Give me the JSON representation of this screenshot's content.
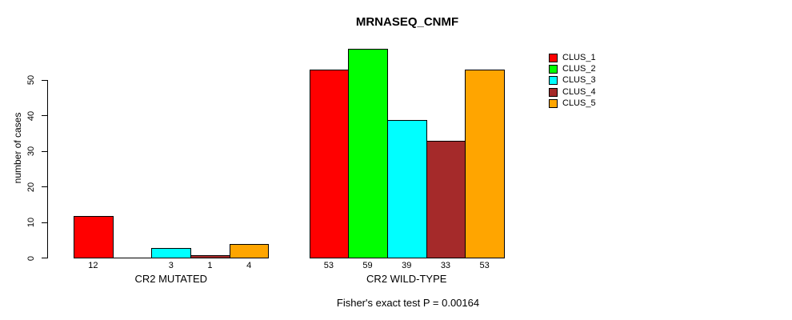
{
  "title": "MRNASEQ_CNMF",
  "ylabel": "number of cases",
  "footer": "Fisher's exact test P = 0.00164",
  "chart_data": {
    "type": "bar",
    "title": "MRNASEQ_CNMF",
    "ylabel": "number of cases",
    "xlabel": "",
    "annotation": "Fisher's exact test P = 0.00164",
    "categories": [
      "CR2 MUTATED",
      "CR2 WILD-TYPE"
    ],
    "series": [
      {
        "name": "CLUS_1",
        "color": "#FF0000",
        "values": [
          12,
          53
        ]
      },
      {
        "name": "CLUS_2",
        "color": "#00FF00",
        "values": [
          0,
          59
        ]
      },
      {
        "name": "CLUS_3",
        "color": "#00FFFF",
        "values": [
          3,
          39
        ]
      },
      {
        "name": "CLUS_4",
        "color": "#A52A2A",
        "values": [
          1,
          33
        ]
      },
      {
        "name": "CLUS_5",
        "color": "#FFA500",
        "values": [
          4,
          53
        ]
      }
    ],
    "bar_value_labels": [
      [
        "12",
        "",
        "3",
        "1",
        "4"
      ],
      [
        "53",
        "59",
        "39",
        "33",
        "53"
      ]
    ],
    "yticks": [
      0,
      10,
      20,
      30,
      40,
      50
    ],
    "ylim": [
      0,
      59
    ],
    "grid": false,
    "legend_position": "right-outside"
  },
  "legend": {
    "items": [
      {
        "label": "CLUS_1",
        "color": "#FF0000"
      },
      {
        "label": "CLUS_2",
        "color": "#00FF00"
      },
      {
        "label": "CLUS_3",
        "color": "#00FFFF"
      },
      {
        "label": "CLUS_4",
        "color": "#A52A2A"
      },
      {
        "label": "CLUS_5",
        "color": "#FFA500"
      }
    ]
  }
}
